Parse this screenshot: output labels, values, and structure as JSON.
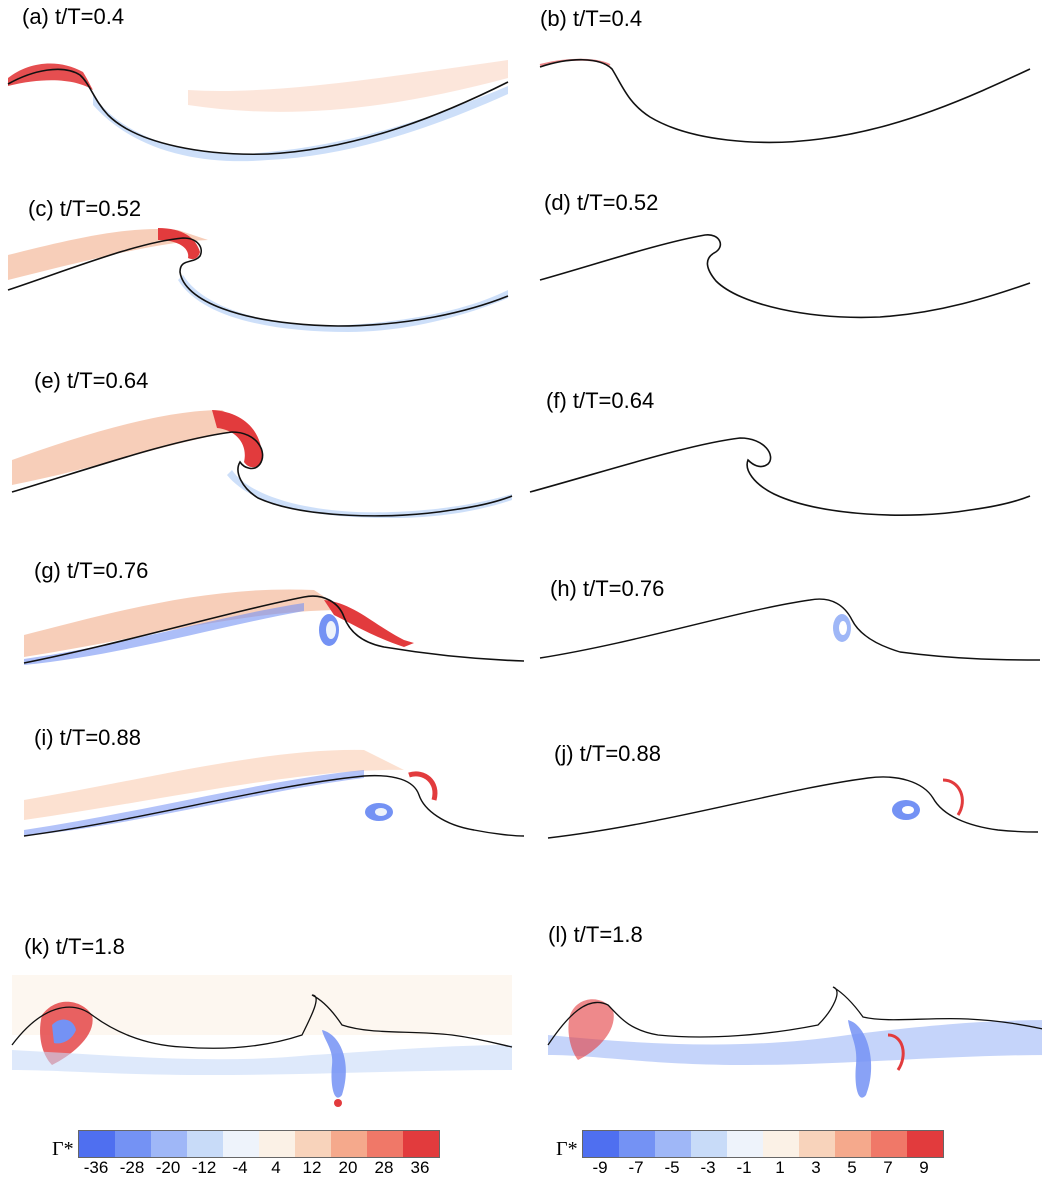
{
  "chart_data": {
    "type": "heatmap",
    "description_free": true,
    "panels": [
      {
        "label": "(a) t/T=0.4",
        "field": "left",
        "phase": 0.4
      },
      {
        "label": "(b) t/T=0.4",
        "field": "right",
        "phase": 0.4
      },
      {
        "label": "(c) t/T=0.52",
        "field": "left",
        "phase": 0.52
      },
      {
        "label": "(d) t/T=0.52",
        "field": "right",
        "phase": 0.52
      },
      {
        "label": "(e) t/T=0.64",
        "field": "left",
        "phase": 0.64
      },
      {
        "label": "(f) t/T=0.64",
        "field": "right",
        "phase": 0.64
      },
      {
        "label": "(g) t/T=0.76",
        "field": "left",
        "phase": 0.76
      },
      {
        "label": "(h) t/T=0.76",
        "field": "right",
        "phase": 0.76
      },
      {
        "label": "(i) t/T=0.88",
        "field": "left",
        "phase": 0.88
      },
      {
        "label": "(j) t/T=0.88",
        "field": "right",
        "phase": 0.88
      },
      {
        "label": "(k) t/T=1.8",
        "field": "left",
        "phase": 1.8
      },
      {
        "label": "(l) t/T=1.8",
        "field": "right",
        "phase": 1.8
      }
    ],
    "colorbars": [
      {
        "title": "Γ*",
        "ticks": [
          "-36",
          "-28",
          "-20",
          "-12",
          "-4",
          "4",
          "12",
          "20",
          "28",
          "36"
        ],
        "colors": [
          "#4f6ff0",
          "#7492f4",
          "#9fb7f7",
          "#c8dbf8",
          "#eef3fb",
          "#fbf1e6",
          "#f8d3bb",
          "#f5a98c",
          "#f07868",
          "#e23b3d"
        ]
      },
      {
        "title": "Γ*",
        "ticks": [
          "-9",
          "-7",
          "-5",
          "-3",
          "-1",
          "1",
          "3",
          "5",
          "7",
          "9"
        ],
        "colors": [
          "#4f6ff0",
          "#7492f4",
          "#9fb7f7",
          "#c8dbf8",
          "#eef3fb",
          "#fbf1e6",
          "#f8d3bb",
          "#f5a98c",
          "#f07868",
          "#e23b3d"
        ]
      }
    ]
  }
}
